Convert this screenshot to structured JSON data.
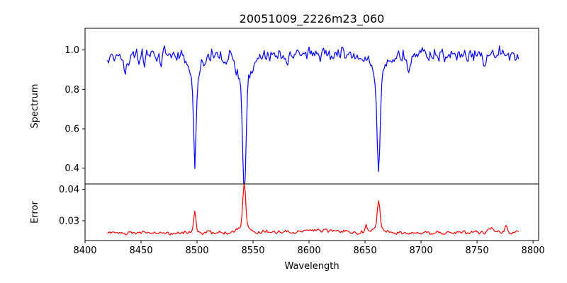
{
  "chart_data": {
    "type": "line",
    "title": "20051009_2226m23_060",
    "xlabel": "Wavelength",
    "xlim": [
      8400,
      8805
    ],
    "x_ticks": [
      8400,
      8450,
      8500,
      8550,
      8600,
      8650,
      8700,
      8750,
      8800
    ],
    "x_range": [
      8420,
      8787
    ],
    "x_step": 1,
    "panels": [
      {
        "name": "spectrum",
        "ylabel": "Spectrum",
        "ylim": [
          0.32,
          1.11
        ],
        "y_ticks": [
          0.4,
          0.6,
          0.8,
          1.0
        ],
        "y_tick_labels": [
          "0.4",
          "0.6",
          "0.8",
          "1.0"
        ],
        "color": "#0000ff",
        "baseline": 0.97,
        "noise": 0.028,
        "features": [
          {
            "center": 8436,
            "depth": 0.1,
            "width": 1.2
          },
          {
            "center": 8468,
            "depth": 0.07,
            "width": 1.0
          },
          {
            "center": 8498.0,
            "depth": 0.43,
            "width": 1.1
          },
          {
            "center": 8498.0,
            "depth": 0.1,
            "width": 5.0
          },
          {
            "center": 8542.1,
            "depth": 0.6,
            "width": 1.4
          },
          {
            "center": 8542.1,
            "depth": 0.14,
            "width": 6.0
          },
          {
            "center": 8662.1,
            "depth": 0.48,
            "width": 1.3
          },
          {
            "center": 8662.1,
            "depth": 0.12,
            "width": 5.5
          },
          {
            "center": 8689,
            "depth": 0.08,
            "width": 1.0
          },
          {
            "center": 8757,
            "depth": 0.06,
            "width": 1.0
          }
        ]
      },
      {
        "name": "error",
        "ylabel": "Error",
        "ylim": [
          0.0237,
          0.0417
        ],
        "y_ticks": [
          0.03,
          0.04
        ],
        "y_tick_labels": [
          "0.03",
          "0.04"
        ],
        "color": "#ff0000",
        "baseline": 0.0262,
        "noise": 0.00045,
        "features": [
          {
            "center": 8498.0,
            "depth": -0.0075,
            "width": 1.0
          },
          {
            "center": 8542.1,
            "depth": -0.0135,
            "width": 1.3
          },
          {
            "center": 8542.1,
            "depth": -0.002,
            "width": 5.0
          },
          {
            "center": 8662.1,
            "depth": -0.0085,
            "width": 1.2
          },
          {
            "center": 8662.1,
            "depth": -0.0015,
            "width": 5.0
          },
          {
            "center": 8651,
            "depth": -0.0025,
            "width": 0.8
          },
          {
            "center": 8762,
            "depth": -0.0017,
            "width": 1.5
          },
          {
            "center": 8776,
            "depth": -0.002,
            "width": 1.0
          },
          {
            "center": 8610,
            "depth": -0.0006,
            "width": 20
          }
        ]
      }
    ]
  }
}
